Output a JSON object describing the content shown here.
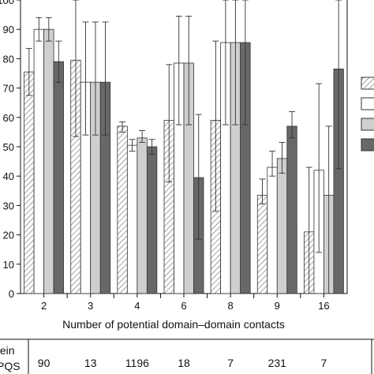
{
  "chart_data": {
    "type": "bar",
    "xlabel": "Number of potential domain–domain contacts",
    "ylabel": "",
    "title": "",
    "ylim": [
      0,
      100
    ],
    "yticks": [
      0,
      10,
      20,
      30,
      40,
      50,
      60,
      70,
      80,
      90,
      100
    ],
    "categories": [
      "2",
      "3",
      "4",
      "6",
      "8",
      "9",
      "16"
    ],
    "series": [
      {
        "fill": "hatched",
        "color": "#ffffff",
        "values": [
          75.5,
          79.5,
          57,
          59,
          59,
          33.5,
          21
        ],
        "err_low": [
          8,
          26,
          2,
          21,
          31,
          3,
          21
        ],
        "err_high": [
          8,
          20.5,
          1.5,
          19,
          27,
          5.5,
          22
        ]
      },
      {
        "fill": "solid",
        "color": "#ffffff",
        "values": [
          90,
          72,
          50.5,
          78.5,
          85.5,
          43,
          42
        ],
        "err_low": [
          4,
          18,
          2,
          21,
          28,
          3,
          28
        ],
        "err_high": [
          4,
          20.5,
          2,
          16,
          15,
          5.5,
          29.5
        ]
      },
      {
        "fill": "solid",
        "color": "#cfcfcf",
        "values": [
          90,
          72,
          53,
          78.5,
          85.5,
          46,
          33.5
        ],
        "err_low": [
          4,
          18,
          1.5,
          21,
          28,
          5,
          33.5
        ],
        "err_high": [
          4,
          20.5,
          2.5,
          16,
          15,
          5.5,
          23.5
        ]
      },
      {
        "fill": "solid",
        "color": "#686868",
        "values": [
          79,
          72,
          50,
          39.5,
          85.5,
          57,
          76.5
        ],
        "err_low": [
          7,
          18,
          2.5,
          21,
          28,
          4,
          34
        ],
        "err_high": [
          7,
          20.5,
          2.5,
          21.5,
          15,
          5,
          24
        ]
      }
    ],
    "legend_position": "right (cropped)",
    "table": {
      "row_labels": [
        "tein",
        "PQS"
      ],
      "values": [
        "90",
        "13",
        "1196",
        "18",
        "7",
        "231",
        "7"
      ]
    }
  }
}
